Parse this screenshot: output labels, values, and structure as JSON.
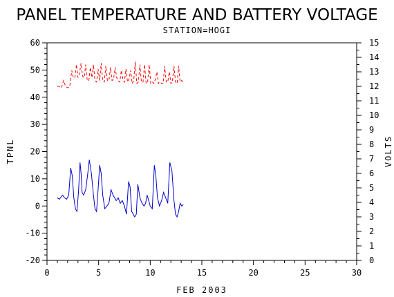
{
  "chart_data": {
    "type": "line",
    "title": "PANEL TEMPERATURE AND BATTERY VOLTAGE",
    "subtitle": "STATION=HOGI",
    "xlabel": "FEB 2003",
    "ylabel": "TPNL",
    "y2label": "VOLTS",
    "xlim": [
      0,
      30
    ],
    "ylim": [
      -20,
      60
    ],
    "y2lim": [
      0,
      15
    ],
    "x_ticks": [
      0,
      5,
      10,
      15,
      20,
      25,
      30
    ],
    "y_ticks": [
      -20,
      -10,
      0,
      10,
      20,
      30,
      40,
      50,
      60
    ],
    "y2_ticks": [
      0,
      1,
      2,
      3,
      4,
      5,
      6,
      7,
      8,
      9,
      10,
      11,
      12,
      13,
      14,
      15
    ],
    "grid": false,
    "series": [
      {
        "axis": "left",
        "style": "solid",
        "color": "#0000cc",
        "x": [
          1.0,
          1.2,
          1.4,
          1.5,
          1.7,
          1.9,
          2.1,
          2.3,
          2.45,
          2.6,
          2.75,
          2.9,
          3.05,
          3.2,
          3.3,
          3.4,
          3.55,
          3.75,
          3.95,
          4.1,
          4.3,
          4.5,
          4.65,
          4.8,
          4.95,
          5.1,
          5.25,
          5.4,
          5.6,
          5.8,
          6.0,
          6.2,
          6.4,
          6.55,
          6.7,
          6.9,
          7.1,
          7.3,
          7.5,
          7.7,
          7.9,
          8.05,
          8.2,
          8.35,
          8.5,
          8.65,
          8.8,
          9.0,
          9.2,
          9.4,
          9.55,
          9.7,
          9.85,
          10.0,
          10.2,
          10.4,
          10.55,
          10.7,
          10.9,
          11.1,
          11.3,
          11.5,
          11.7,
          11.9,
          12.1,
          12.3,
          12.45,
          12.6,
          12.75,
          12.9,
          13.05,
          13.2
        ],
        "values": [
          3,
          2.5,
          3.5,
          4,
          3,
          2.5,
          4,
          14,
          11,
          3,
          -1,
          -2,
          5,
          16,
          12,
          5,
          4,
          6,
          12,
          17,
          12,
          4,
          -1,
          -2,
          6,
          15,
          12,
          4,
          -1,
          0,
          1,
          6,
          4,
          3,
          2,
          3,
          1,
          2,
          0,
          -3,
          9,
          7,
          -2,
          -3,
          -4,
          -3,
          8,
          3,
          1,
          0,
          1,
          4,
          2,
          0,
          -1,
          15,
          11,
          3,
          0,
          2,
          5,
          3,
          1,
          16,
          13,
          2,
          -3,
          -4,
          -2,
          1,
          0,
          0.5
        ]
      },
      {
        "axis": "right",
        "style": "dashed",
        "color": "#ff0000",
        "x": [
          1.0,
          1.2,
          1.4,
          1.6,
          1.8,
          2.0,
          2.2,
          2.4,
          2.55,
          2.7,
          2.85,
          3.0,
          3.15,
          3.3,
          3.45,
          3.6,
          3.75,
          3.9,
          4.05,
          4.2,
          4.35,
          4.5,
          4.65,
          4.8,
          4.95,
          5.1,
          5.25,
          5.4,
          5.55,
          5.7,
          5.85,
          6.0,
          6.15,
          6.3,
          6.45,
          6.6,
          6.75,
          6.9,
          7.05,
          7.2,
          7.35,
          7.5,
          7.65,
          7.8,
          7.95,
          8.1,
          8.25,
          8.4,
          8.55,
          8.7,
          8.85,
          9.0,
          9.15,
          9.3,
          9.45,
          9.6,
          9.75,
          9.9,
          10.05,
          10.2,
          10.35,
          10.5,
          10.65,
          10.8,
          10.95,
          11.1,
          11.25,
          11.4,
          11.55,
          11.7,
          11.85,
          12.0,
          12.15,
          12.3,
          12.45,
          12.6,
          12.75,
          12.9,
          13.05,
          13.2
        ],
        "values": [
          12.0,
          12.0,
          11.9,
          12.4,
          12.0,
          11.9,
          12.0,
          13.1,
          12.6,
          12.6,
          13.5,
          12.6,
          12.9,
          13.6,
          12.7,
          12.6,
          13.5,
          12.4,
          12.4,
          13.3,
          12.6,
          13.5,
          12.4,
          12.3,
          13.2,
          12.4,
          13.6,
          12.4,
          12.3,
          13.4,
          12.4,
          12.4,
          13.3,
          12.4,
          12.5,
          13.3,
          12.6,
          12.4,
          12.3,
          13.1,
          12.5,
          12.3,
          13.2,
          12.3,
          12.5,
          13.1,
          12.2,
          12.4,
          13.7,
          12.2,
          12.3,
          13.5,
          12.3,
          12.3,
          13.5,
          12.2,
          12.3,
          13.5,
          12.2,
          12.3,
          12.2,
          12.5,
          13.0,
          12.2,
          12.3,
          12.2,
          12.2,
          13.4,
          12.3,
          12.3,
          13.0,
          12.2,
          12.3,
          13.4,
          12.3,
          12.2,
          13.4,
          12.3,
          12.4,
          12.3
        ]
      }
    ]
  }
}
